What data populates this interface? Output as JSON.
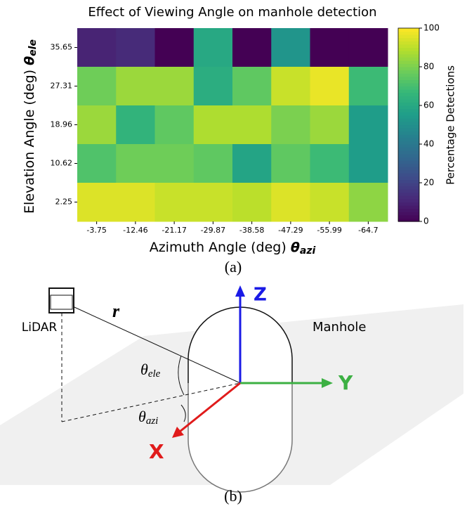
{
  "chart_data": {
    "type": "heatmap",
    "title": "Effect of Viewing Angle on manhole detection",
    "xlabel": "Azimuth Angle (deg)",
    "xlabel_symbol": "θ",
    "xlabel_subscript": "azi",
    "ylabel": "Elevation Angle (deg)",
    "ylabel_symbol": "θ",
    "ylabel_subscript": "ele",
    "x": [
      "-3.75",
      "-12.46",
      "-21.17",
      "-29.87",
      "-38.58",
      "-47.29",
      "-55.99",
      "-64.7"
    ],
    "y": [
      "35.65",
      "27.31",
      "18.96",
      "10.62",
      "2.25"
    ],
    "values": [
      [
        10,
        12,
        0,
        60,
        0,
        52,
        0,
        0
      ],
      [
        78,
        85,
        85,
        62,
        75,
        92,
        97,
        68
      ],
      [
        85,
        65,
        75,
        88,
        88,
        80,
        85,
        55
      ],
      [
        72,
        78,
        78,
        75,
        58,
        75,
        68,
        55
      ],
      [
        95,
        95,
        92,
        92,
        90,
        95,
        92,
        83
      ]
    ],
    "colormap": "viridis",
    "clim": [
      0,
      100
    ],
    "cticks": [
      0,
      20,
      40,
      60,
      80,
      100
    ],
    "colorbar_label": "Percentage Detections"
  },
  "caption_a": "(a)",
  "diagram": {
    "lidar": "LiDAR",
    "manhole": "Manhole",
    "r": "r",
    "axis_x": "X",
    "axis_y": "Y",
    "axis_z": "Z",
    "theta": "θ",
    "ele": "ele",
    "azi": "azi"
  },
  "caption_b": "(b)"
}
